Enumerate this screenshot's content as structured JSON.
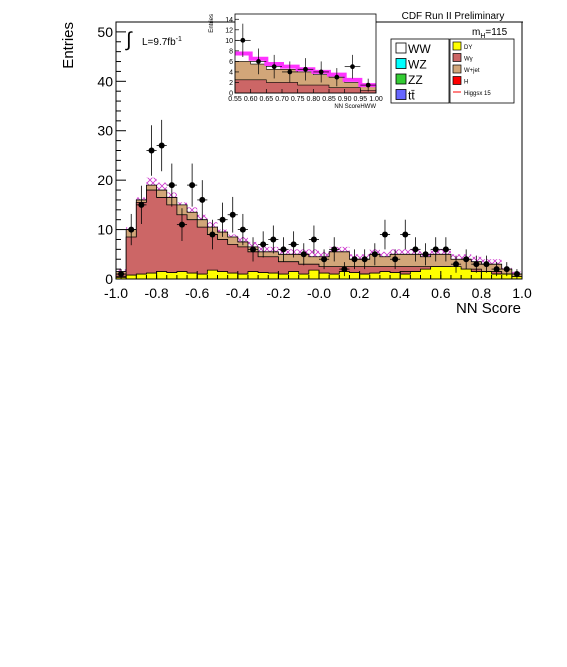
{
  "chart_data": [
    {
      "type": "bar",
      "title": "",
      "experiment_label": "CDF Run II Preliminary",
      "luminosity": "L=9.7fb",
      "luminosity_exp": "-1",
      "mass_label": "m",
      "mass_sub": "H",
      "mass_value": "=115",
      "xlabel": "NN Score",
      "ylabel": "Entries",
      "xlim": [
        -1.0,
        1.0
      ],
      "ylim": [
        0,
        52
      ],
      "xticks": [
        "-1.0",
        "-0.8",
        "-0.6",
        "-0.4",
        "-0.2",
        "-0.0",
        "0.2",
        "0.4",
        "0.6",
        "0.8",
        "1.0"
      ],
      "yticks": [
        "0",
        "10",
        "20",
        "30",
        "40",
        "50"
      ],
      "bin_edges": [
        -1.0,
        -0.95,
        -0.9,
        -0.85,
        -0.8,
        -0.75,
        -0.7,
        -0.65,
        -0.6,
        -0.55,
        -0.5,
        -0.45,
        -0.4,
        -0.35,
        -0.3,
        -0.25,
        -0.2,
        -0.15,
        -0.1,
        -0.05,
        0.0,
        0.05,
        0.1,
        0.15,
        0.2,
        0.25,
        0.3,
        0.35,
        0.4,
        0.45,
        0.5,
        0.55,
        0.6,
        0.65,
        0.7,
        0.75,
        0.8,
        0.85,
        0.9,
        0.95,
        1.0
      ],
      "series": [
        {
          "name": "Higgsx 15",
          "color": "#cc33cc",
          "values": [
            2.0,
            10.5,
            16.5,
            20.5,
            19.5,
            17.5,
            15.5,
            14.5,
            13.0,
            11.5,
            10.0,
            9.0,
            8.5,
            7.5,
            6.5,
            6.5,
            6.0,
            6.0,
            6.0,
            6.0,
            5.5,
            6.5,
            6.5,
            5.0,
            5.0,
            6.0,
            5.5,
            6.0,
            6.0,
            6.0,
            5.5,
            6.0,
            6.0,
            5.0,
            5.0,
            4.5,
            4.0,
            4.0,
            2.5,
            1.5
          ]
        },
        {
          "name": "Wγ",
          "color": "#cc6666",
          "values": [
            1.0,
            8.5,
            15.5,
            18.0,
            16.5,
            15.0,
            13.0,
            12.0,
            10.5,
            9.0,
            8.0,
            7.0,
            6.5,
            5.5,
            4.5,
            4.5,
            3.5,
            3.5,
            3.0,
            3.0,
            2.5,
            2.5,
            2.5,
            2.5,
            2.5,
            2.5,
            2.5,
            2.5,
            2.5,
            2.5,
            2.5,
            2.5,
            2.5,
            2.0,
            2.0,
            2.0,
            1.5,
            1.5,
            1.0,
            0.5
          ]
        },
        {
          "name": "W+jet",
          "color": "#d2a679",
          "values": [
            1.5,
            10.0,
            16.0,
            19.0,
            18.0,
            16.5,
            15.0,
            13.5,
            12.0,
            10.5,
            9.5,
            8.5,
            7.5,
            6.5,
            5.5,
            5.5,
            5.0,
            5.0,
            5.0,
            4.5,
            4.5,
            5.5,
            5.5,
            4.0,
            4.0,
            5.0,
            4.5,
            5.0,
            5.0,
            5.0,
            4.5,
            5.0,
            5.0,
            4.0,
            4.0,
            3.5,
            3.0,
            3.0,
            2.0,
            1.0
          ]
        },
        {
          "name": "DY",
          "color": "#ffff00",
          "values": [
            0.3,
            0.8,
            1.0,
            1.2,
            1.5,
            1.3,
            1.5,
            1.2,
            1.0,
            1.8,
            1.5,
            1.2,
            1.0,
            1.5,
            1.3,
            1.2,
            1.0,
            1.5,
            1.0,
            1.8,
            1.2,
            1.0,
            1.5,
            1.3,
            1.0,
            1.2,
            1.5,
            1.3,
            1.0,
            1.5,
            2.0,
            2.5,
            2.5,
            2.5,
            2.0,
            1.5,
            1.5,
            1.0,
            1.0,
            0.5
          ]
        },
        {
          "name": "WW",
          "color": "#ffffff",
          "values": [
            0.5,
            0.5,
            0.5,
            0.5,
            0.5,
            0.5,
            0.5,
            0.5,
            0.5,
            0.5,
            0.5,
            0.5,
            0.5,
            0.5,
            0.5,
            0.5,
            0.5,
            0.5,
            0.5,
            0.5,
            0.5,
            0.8,
            1.0,
            1.0,
            1.0,
            1.0,
            1.2,
            1.2,
            1.5,
            1.5,
            1.5,
            1.8,
            1.8,
            1.5,
            1.5,
            1.2,
            1.0,
            1.0,
            0.8,
            0.5
          ]
        }
      ],
      "data_points": {
        "name": "Data",
        "x": [
          -0.975,
          -0.925,
          -0.875,
          -0.825,
          -0.775,
          -0.725,
          -0.675,
          -0.625,
          -0.575,
          -0.525,
          -0.475,
          -0.425,
          -0.375,
          -0.325,
          -0.275,
          -0.225,
          -0.175,
          -0.125,
          -0.075,
          -0.025,
          0.025,
          0.075,
          0.125,
          0.175,
          0.225,
          0.275,
          0.325,
          0.375,
          0.425,
          0.475,
          0.525,
          0.575,
          0.625,
          0.675,
          0.725,
          0.775,
          0.825,
          0.875,
          0.925,
          0.975
        ],
        "y": [
          1,
          10,
          15,
          26,
          27,
          19,
          11,
          19,
          16,
          9,
          12,
          13,
          10,
          6,
          7,
          8,
          6,
          7,
          5,
          8,
          4,
          6,
          2,
          4,
          4,
          5,
          9,
          4,
          9,
          6,
          5,
          6,
          6,
          3,
          4,
          3,
          3,
          2,
          2,
          1
        ]
      },
      "legend": {
        "placement": "top-right",
        "entries_left": [
          {
            "label": "WW",
            "color": "#ffffff",
            "size": "large"
          },
          {
            "label": "WZ",
            "color": "#00ffff",
            "size": "large"
          },
          {
            "label": "ZZ",
            "color": "#33cc33",
            "size": "large"
          },
          {
            "label": "tt̄",
            "color": "#6666ff",
            "size": "large"
          }
        ],
        "entries_right": [
          {
            "label": "DY",
            "color": "#ffff00",
            "type": "box"
          },
          {
            "label": "Wγ",
            "color": "#cc6666",
            "type": "box"
          },
          {
            "label": "W+jet",
            "color": "#d2a679",
            "type": "box"
          },
          {
            "label": "H",
            "color": "#ff0000",
            "type": "box"
          },
          {
            "label": "Higgsx 15",
            "color": "#ff0000",
            "type": "line"
          }
        ]
      }
    },
    {
      "type": "bar",
      "title": "",
      "xlabel": "NN ScoreHWW",
      "ylabel": "Entries",
      "xlim": [
        0.55,
        1.0
      ],
      "ylim": [
        0,
        15
      ],
      "xticks": [
        "0.55",
        "0.60",
        "0.65",
        "0.70",
        "0.75",
        "0.80",
        "0.85",
        "0.90",
        "0.95",
        "1.00"
      ],
      "yticks": [
        "0",
        "2",
        "4",
        "6",
        "8",
        "10",
        "12",
        "14"
      ],
      "bin_edges": [
        0.55,
        0.6,
        0.65,
        0.7,
        0.75,
        0.8,
        0.85,
        0.9,
        0.95,
        1.0
      ],
      "stack_total": [
        6.0,
        5.5,
        4.5,
        4.5,
        4.0,
        3.5,
        3.0,
        2.0,
        1.5
      ],
      "wgamma": [
        2.5,
        2.5,
        2.0,
        2.0,
        1.5,
        1.5,
        1.0,
        1.0,
        0.5
      ],
      "higgs_line": [
        7.5,
        6.5,
        5.5,
        5.0,
        4.5,
        4.0,
        3.5,
        2.5,
        1.5
      ],
      "data_points": {
        "x": [
          0.575,
          0.625,
          0.675,
          0.725,
          0.775,
          0.825,
          0.875,
          0.925,
          0.975
        ],
        "y": [
          10,
          6,
          5,
          4,
          4.5,
          4,
          3,
          5,
          1.5
        ]
      }
    }
  ]
}
